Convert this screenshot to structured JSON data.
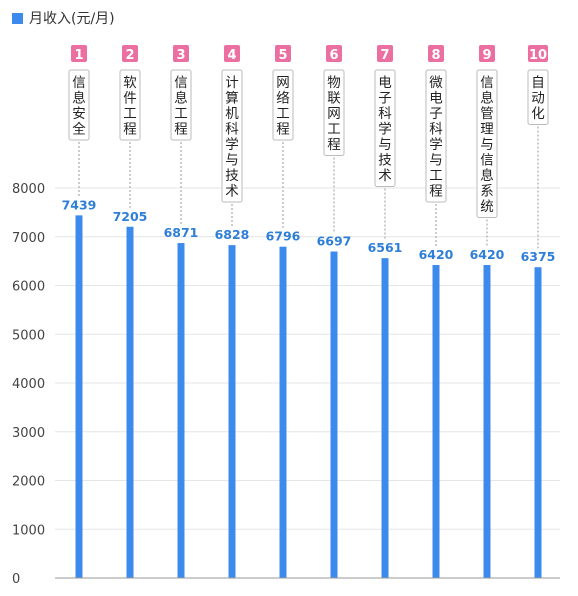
{
  "legend": {
    "label": "月收入(元/月)"
  },
  "colors": {
    "bar": "#3C8BEC",
    "rank_badge": "#EC6FA2",
    "grid": "#E6E6E6",
    "axis_text": "#444444",
    "value_text": "#2F7FD8",
    "label_border": "#BBBBBB"
  },
  "chart_data": {
    "type": "bar",
    "categories": [
      "信息安全",
      "软件工程",
      "信息工程",
      "计算机科学与技术",
      "网络工程",
      "物联网工程",
      "电子科学与技术",
      "微电子科学与工程",
      "信息管理与信息系统",
      "自动化"
    ],
    "ranks": [
      "1",
      "2",
      "3",
      "4",
      "5",
      "6",
      "7",
      "8",
      "9",
      "10"
    ],
    "series": [
      {
        "name": "月收入(元/月)",
        "values": [
          7439,
          7205,
          6871,
          6828,
          6796,
          6697,
          6561,
          6420,
          6420,
          6375
        ]
      }
    ],
    "ylim": [
      0,
      8000
    ],
    "yticks": [
      0,
      1000,
      2000,
      3000,
      4000,
      5000,
      6000,
      7000,
      8000
    ],
    "grid": true,
    "legend_position": "top-left"
  }
}
